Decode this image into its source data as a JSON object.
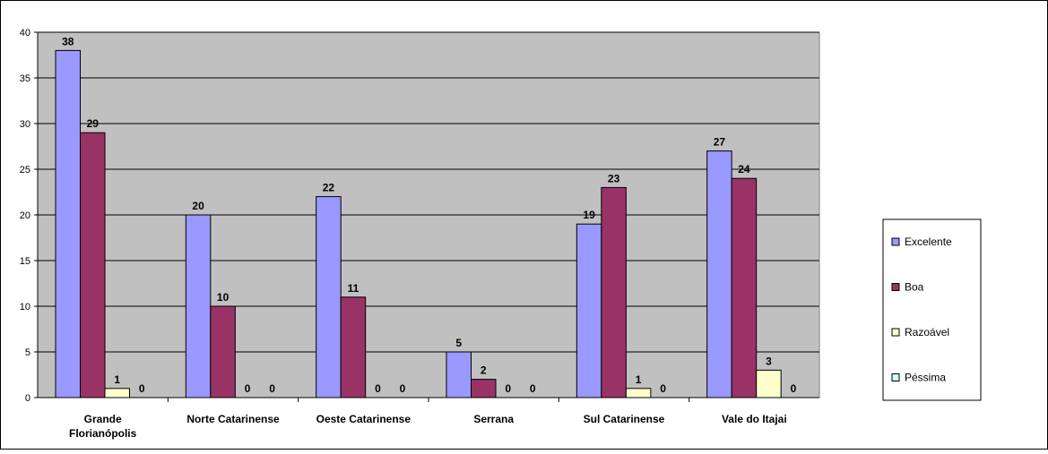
{
  "chart_data": {
    "type": "bar",
    "title": "",
    "xlabel": "",
    "ylabel": "",
    "ylim": [
      0,
      40
    ],
    "yticks": [
      0,
      5,
      10,
      15,
      20,
      25,
      30,
      35,
      40
    ],
    "grid": true,
    "legend_position": "right",
    "plot_background": "#c0c0c0",
    "categories": [
      [
        "Grande",
        "Florianópolis"
      ],
      [
        "Norte Catarinense"
      ],
      [
        "Oeste Catarinense"
      ],
      [
        "Serrana"
      ],
      [
        "Sul Catarinense"
      ],
      [
        "Vale do Itajai"
      ]
    ],
    "series": [
      {
        "name": "Excelente",
        "color": "#9999ff",
        "values": [
          38,
          20,
          22,
          5,
          19,
          27
        ]
      },
      {
        "name": "Boa",
        "color": "#993366",
        "values": [
          29,
          10,
          11,
          2,
          23,
          24
        ]
      },
      {
        "name": "Razoável",
        "color": "#ffffcc",
        "values": [
          1,
          0,
          0,
          0,
          1,
          3
        ]
      },
      {
        "name": "Péssima",
        "color": "#ccffff",
        "values": [
          0,
          0,
          0,
          0,
          0,
          0
        ]
      }
    ]
  }
}
